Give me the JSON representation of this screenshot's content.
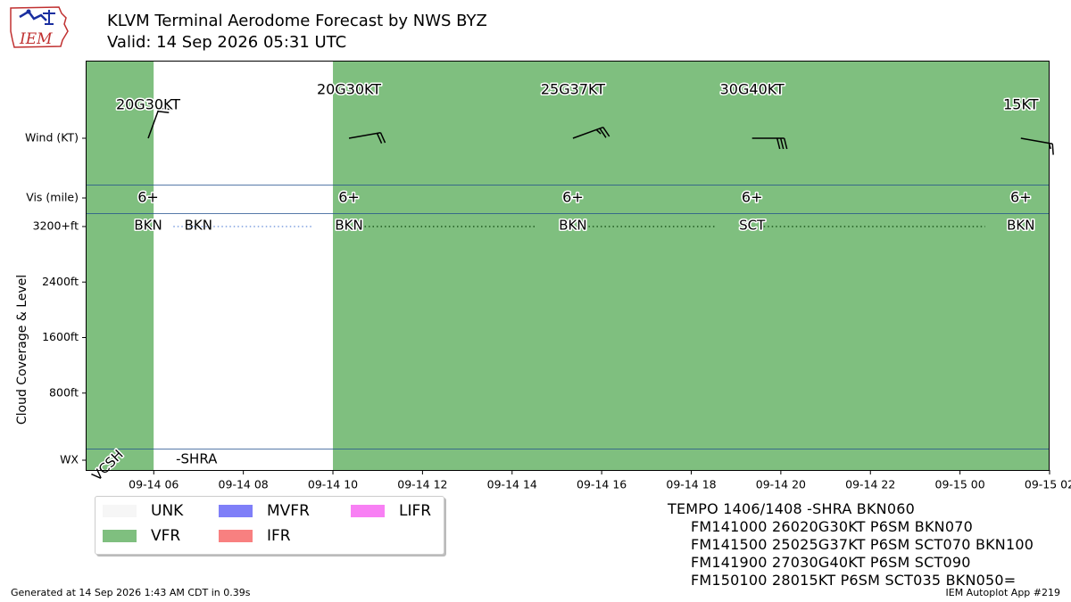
{
  "header": {
    "logo_text": "IEM",
    "title_line1": "KLVM Terminal Aerodome Forecast by NWS BYZ",
    "title_line2": "Valid: 14 Sep 2026 05:31 UTC"
  },
  "chart_data": {
    "type": "timeline",
    "x_start": "09-14 04:30",
    "x_end": "09-15 02:00",
    "x_ticks": [
      "09-14 06",
      "09-14 08",
      "09-14 10",
      "09-14 12",
      "09-14 14",
      "09-14 16",
      "09-14 18",
      "09-14 20",
      "09-14 22",
      "09-15 00",
      "09-15 02"
    ],
    "y_labels": {
      "wind": "Wind (KT)",
      "vis": "Vis (mile)",
      "top": "3200+ft",
      "wx": "WX"
    },
    "y_ticks_ft": [
      800,
      1600,
      2400
    ],
    "y_tick_labels": [
      "800ft",
      "1600ft",
      "2400ft"
    ],
    "ylabel": "Cloud Coverage & Level",
    "category_periods": [
      {
        "start": "09-14 04:30",
        "end": "09-14 06:00",
        "category": "VFR"
      },
      {
        "start": "09-14 06:00",
        "end": "09-14 10:00",
        "category": "UNK"
      },
      {
        "start": "09-14 10:00",
        "end": "09-15 02:00",
        "category": "VFR"
      }
    ],
    "forecast_points": [
      {
        "time": "09-14 05:31",
        "wind_label": "20G30KT",
        "wind_dir": 200,
        "wind_kt": 20,
        "vis": "6+",
        "cloud": "BKN",
        "wx": "VCSH"
      },
      {
        "time": "09-14 06:00",
        "cloud": "BKN",
        "wx": "-SHRA",
        "tempo": true
      },
      {
        "time": "09-14 10:00",
        "wind_label": "20G30KT",
        "wind_dir": 260,
        "wind_kt": 20,
        "vis": "6+",
        "cloud": "BKN"
      },
      {
        "time": "09-14 15:00",
        "wind_label": "25G37KT",
        "wind_dir": 250,
        "wind_kt": 25,
        "vis": "6+",
        "cloud": "BKN"
      },
      {
        "time": "09-14 19:00",
        "wind_label": "30G40KT",
        "wind_dir": 270,
        "wind_kt": 30,
        "vis": "6+",
        "cloud": "SCT"
      },
      {
        "time": "09-15 01:00",
        "wind_label": "15KT",
        "wind_dir": 280,
        "wind_kt": 15,
        "vis": "6+",
        "cloud": "BKN"
      }
    ]
  },
  "legend": {
    "items": [
      {
        "label": "UNK",
        "color": "#f6f6f6"
      },
      {
        "label": "VFR",
        "color": "#7fbf7f"
      },
      {
        "label": "MVFR",
        "color": "#7f7ff8"
      },
      {
        "label": "IFR",
        "color": "#f88080"
      },
      {
        "label": "LIFR",
        "color": "#f880f4"
      }
    ]
  },
  "taf_text": [
    "TEMPO 1406/1408 -SHRA BKN060",
    "FM141000 26020G30KT P6SM BKN070",
    "FM141500 25025G37KT P6SM SCT070 BKN100",
    "FM141900 27030G40KT P6SM SCT090",
    "FM150100 28015KT P6SM SCT035 BKN050="
  ],
  "footer": {
    "left": "Generated at 14 Sep 2026 1:43 AM CDT in 0.39s",
    "right": "IEM Autoplot App #219"
  },
  "colors": {
    "vfr": "#7fbf7f",
    "unk": "#ffffff",
    "separator": "#1f4e8c",
    "dots_unk": "#7f9fdf",
    "dots_vfr": "#1f5a1f",
    "logo_border": "#c03030",
    "logo_blue": "#1a2fa0"
  }
}
